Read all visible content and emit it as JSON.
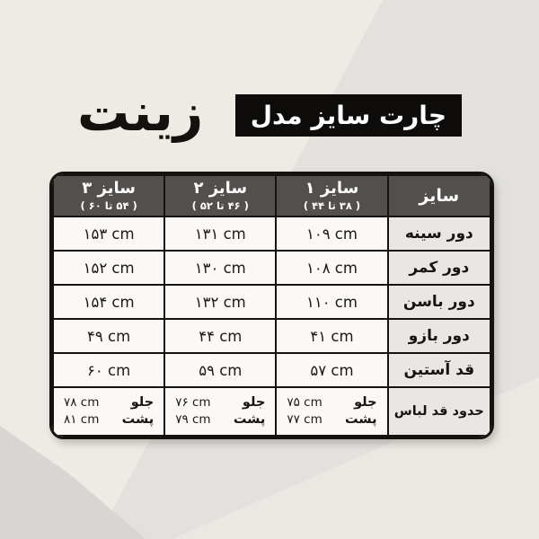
{
  "header": {
    "title_box": "چارت سایز مدل",
    "model_name": "زینت"
  },
  "table": {
    "corner_label": "سایز",
    "columns": [
      {
        "title": "سایز ۱",
        "range": "( ۳۸ تا ۴۴ )"
      },
      {
        "title": "سایز ۲",
        "range": "( ۴۶ تا ۵۲ )"
      },
      {
        "title": "سایز ۳",
        "range": "( ۵۴ تا ۶۰ )"
      }
    ],
    "rows": [
      {
        "label": "دور سینه",
        "values": [
          "۱۰۹ cm",
          "۱۳۱ cm",
          "۱۵۳ cm"
        ]
      },
      {
        "label": "دور کمر",
        "values": [
          "۱۰۸ cm",
          "۱۳۰ cm",
          "۱۵۲ cm"
        ]
      },
      {
        "label": "دور باسن",
        "values": [
          "۱۱۰ cm",
          "۱۳۲ cm",
          "۱۵۴ cm"
        ]
      },
      {
        "label": "دور بازو",
        "values": [
          "۴۱ cm",
          "۴۴ cm",
          "۴۹ cm"
        ]
      },
      {
        "label": "قد آستین",
        "values": [
          "۵۷ cm",
          "۵۹ cm",
          "۶۰ cm"
        ]
      }
    ],
    "length_row": {
      "label": "حدود قد لباس",
      "front_label": "جلو",
      "back_label": "پشت",
      "values": [
        {
          "front": "۷۵ cm",
          "back": "۷۷ cm"
        },
        {
          "front": "۷۶ cm",
          "back": "۷۹ cm"
        },
        {
          "front": "۷۸ cm",
          "back": "۸۱ cm"
        }
      ]
    }
  },
  "chart_data": {
    "type": "table",
    "title": "چارت سایز مدل زینت",
    "columns": [
      "سایز",
      "سایز ۱ (۳۸ تا ۴۴)",
      "سایز ۲ (۴۶ تا ۵۲)",
      "سایز ۳ (۵۴ تا ۶۰)"
    ],
    "unit": "cm",
    "rows": [
      {
        "measure": "دور سینه",
        "size1": 109,
        "size2": 131,
        "size3": 153
      },
      {
        "measure": "دور کمر",
        "size1": 108,
        "size2": 130,
        "size3": 152
      },
      {
        "measure": "دور باسن",
        "size1": 110,
        "size2": 132,
        "size3": 154
      },
      {
        "measure": "دور بازو",
        "size1": 41,
        "size2": 44,
        "size3": 49
      },
      {
        "measure": "قد آستین",
        "size1": 57,
        "size2": 59,
        "size3": 60
      },
      {
        "measure": "حدود قد لباس جلو",
        "size1": 75,
        "size2": 76,
        "size3": 78
      },
      {
        "measure": "حدود قد لباس پشت",
        "size1": 77,
        "size2": 79,
        "size3": 81
      }
    ]
  }
}
